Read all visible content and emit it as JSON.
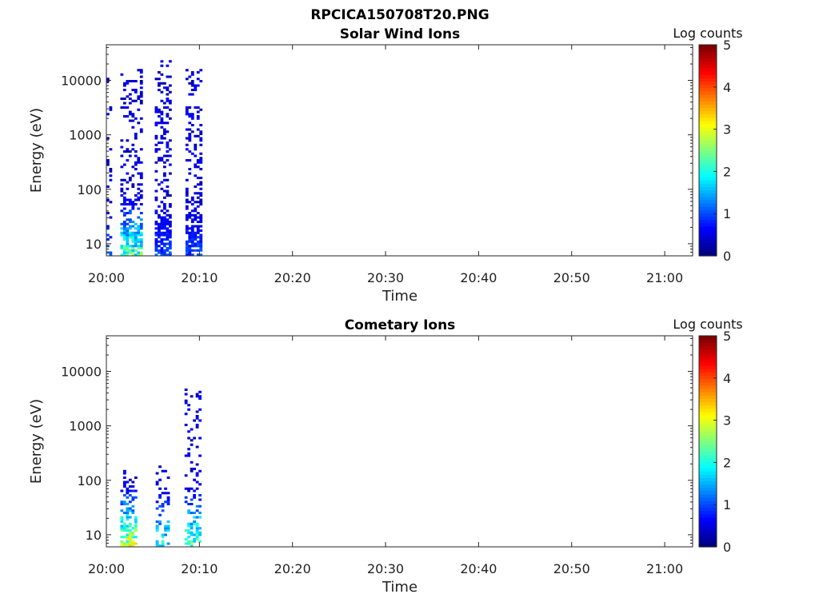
{
  "figure_title": "RPCICA150708T20.PNG",
  "colors": {
    "axis": "#262626",
    "background": "#ffffff"
  },
  "chart_data": [
    {
      "type": "heatmap",
      "title": "Solar Wind Ions",
      "xlabel": "Time",
      "ylabel": "Energy (eV)",
      "yscale": "log",
      "ylim": [
        6,
        45000
      ],
      "xlim": [
        "20:00",
        "21:03"
      ],
      "xticks": [
        "20:00",
        "20:10",
        "20:20",
        "20:30",
        "20:40",
        "20:50",
        "21:00"
      ],
      "yticks": [
        "10",
        "100",
        "1000",
        "10000"
      ],
      "colorbar": {
        "label": "Log counts",
        "range": [
          0,
          5
        ],
        "ticks": [
          "0",
          "1",
          "2",
          "3",
          "4",
          "5"
        ],
        "colormap": "jet"
      },
      "bursts": [
        {
          "t_start": 0.0,
          "t_end": 0.6,
          "e_min": 6,
          "e_max": 15000,
          "low_peak": 1.2,
          "density": 0.35
        },
        {
          "t_start": 1.5,
          "t_end": 3.7,
          "e_min": 6,
          "e_max": 15000,
          "low_peak": 2.3,
          "density": 0.55
        },
        {
          "t_start": 5.2,
          "t_end": 6.8,
          "e_min": 6,
          "e_max": 22000,
          "low_peak": 1.0,
          "density": 0.6
        },
        {
          "t_start": 8.5,
          "t_end": 10.1,
          "e_min": 6,
          "e_max": 15000,
          "low_peak": 1.0,
          "density": 0.6
        }
      ]
    },
    {
      "type": "heatmap",
      "title": "Cometary Ions",
      "xlabel": "Time",
      "ylabel": "Energy (eV)",
      "yscale": "log",
      "ylim": [
        6,
        45000
      ],
      "xlim": [
        "20:00",
        "21:03"
      ],
      "xticks": [
        "20:00",
        "20:10",
        "20:20",
        "20:30",
        "20:40",
        "20:50",
        "21:00"
      ],
      "yticks": [
        "10",
        "100",
        "1000",
        "10000"
      ],
      "colorbar": {
        "label": "Log counts",
        "range": [
          0,
          5
        ],
        "ticks": [
          "0",
          "1",
          "2",
          "3",
          "4",
          "5"
        ],
        "colormap": "jet"
      },
      "bursts": [
        {
          "t_start": 1.5,
          "t_end": 3.2,
          "e_min": 6,
          "e_max": 150,
          "low_peak": 3.0,
          "density": 0.5
        },
        {
          "t_start": 5.3,
          "t_end": 6.6,
          "e_min": 6,
          "e_max": 200,
          "low_peak": 2.0,
          "density": 0.3
        },
        {
          "t_start": 8.4,
          "t_end": 10.0,
          "e_min": 6,
          "e_max": 5000,
          "low_peak": 2.6,
          "density": 0.35
        }
      ]
    }
  ]
}
